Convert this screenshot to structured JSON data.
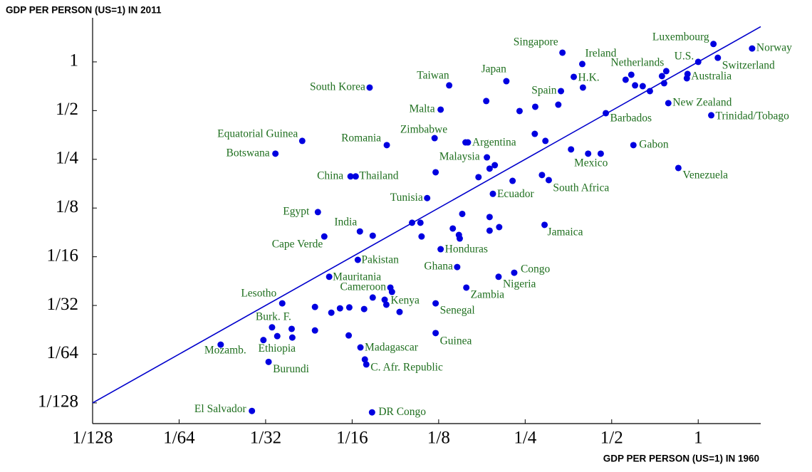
{
  "chart_data": {
    "type": "scatter",
    "ylabel": "GDP PER PERSON (US=1) IN 2011",
    "xlabel": "GDP PER PERSON (US=1) IN 1960",
    "log_x": true,
    "log_y": true,
    "identity_line": true,
    "point_color": "#0000e0",
    "label_color": "#1f6f1f",
    "line_color": "#0000cc",
    "xlim": [
      0.0078125,
      1.65
    ],
    "ylim": [
      0.00582,
      1.78
    ],
    "xticks": [
      {
        "value": 0.0078125,
        "label": "1/128"
      },
      {
        "value": 0.015625,
        "label": "1/64"
      },
      {
        "value": 0.03125,
        "label": "1/32"
      },
      {
        "value": 0.0625,
        "label": "1/16"
      },
      {
        "value": 0.125,
        "label": "1/8"
      },
      {
        "value": 0.25,
        "label": "1/4"
      },
      {
        "value": 0.5,
        "label": "1/2"
      },
      1
    ],
    "yticks": [
      {
        "value": 0.0078125,
        "label": "1/128"
      },
      {
        "value": 0.015625,
        "label": "1/64"
      },
      {
        "value": 0.03125,
        "label": "1/32"
      },
      {
        "value": 0.0625,
        "label": "1/16"
      },
      {
        "value": 0.125,
        "label": "1/8"
      },
      {
        "value": 0.25,
        "label": "1/4"
      },
      {
        "value": 0.5,
        "label": "1/2"
      },
      1
    ],
    "point_labels": [
      "Norway",
      "Luxembourg",
      "Switzerland",
      "U.S.",
      "Australia",
      "Netherlands",
      "Ireland",
      "Singapore",
      "H.K.",
      "Japan",
      "Taiwan",
      "South Korea",
      "Spain",
      "Malta",
      "New Zealand",
      "Trinidad/Tobago",
      "Barbados",
      "Equatorial Guinea",
      "Zimbabwe",
      "Romania",
      "Argentina",
      "Botswana",
      "Gabon",
      "Malaysia",
      "Mexico",
      "China",
      "Thailand",
      "Venezuela",
      "South Africa",
      "Tunisia",
      "Ecuador",
      "Egypt",
      "India",
      "Jamaica",
      "Cape Verde",
      "Honduras",
      "Pakistan",
      "Ghana",
      "Congo",
      "Mauritania",
      "Nigeria",
      "Cameroon",
      "Zambia",
      "Kenya",
      "Lesotho",
      "Senegal",
      "Burk. F.",
      "Ethiopia",
      "Guinea",
      "Mozamb.",
      "Madagascar",
      "Burundi",
      "C. Afr. Republic",
      "El Salvador",
      "DR Congo",
      null,
      null,
      null,
      null,
      null,
      null,
      null,
      null,
      null,
      null,
      null,
      null,
      null,
      null,
      null,
      null,
      null,
      null,
      null,
      null,
      null,
      null,
      null,
      null,
      null,
      null,
      null,
      null,
      null,
      null,
      null,
      null,
      null,
      null,
      null,
      null,
      null,
      null,
      null,
      null,
      null,
      null,
      null,
      null,
      null,
      null,
      null,
      null,
      null,
      null
    ],
    "x": [
      1.54,
      1.13,
      1.17,
      1.0,
      0.913,
      0.585,
      0.395,
      0.337,
      0.369,
      0.215,
      0.136,
      0.0719,
      0.333,
      0.127,
      0.787,
      1.11,
      0.477,
      0.0419,
      0.121,
      0.0825,
      0.158,
      0.0338,
      0.595,
      0.184,
      0.414,
      0.0617,
      0.0643,
      0.853,
      0.302,
      0.114,
      0.193,
      0.0475,
      0.0665,
      0.292,
      0.05,
      0.127,
      0.0654,
      0.145,
      0.229,
      0.052,
      0.202,
      0.0849,
      0.156,
      0.0822,
      0.0357,
      0.122,
      0.0329,
      0.0307,
      0.122,
      0.0218,
      0.0668,
      0.032,
      0.07,
      0.028,
      0.0733,
      0.774,
      0.748,
      0.761,
      0.641,
      0.603,
      0.679,
      0.559,
      0.918,
      0.397,
      0.271,
      0.326,
      0.239,
      0.183,
      0.27,
      0.294,
      0.155,
      0.361,
      0.458,
      0.188,
      0.196,
      0.122,
      0.172,
      0.226,
      0.286,
      0.151,
      0.188,
      0.203,
      0.188,
      0.101,
      0.108,
      0.14,
      0.147,
      0.148,
      0.109,
      0.0737,
      0.086,
      0.0811,
      0.0737,
      0.0688,
      0.0611,
      0.0567,
      0.0529,
      0.0464,
      0.0914,
      0.0385,
      0.0387,
      0.0343,
      0.0464,
      0.0608,
      0.0692
    ],
    "values": [
      1.21,
      1.29,
      1.06,
      1.0,
      0.792,
      0.833,
      0.97,
      1.14,
      0.808,
      0.76,
      0.716,
      0.694,
      0.66,
      0.507,
      0.556,
      0.468,
      0.482,
      0.325,
      0.338,
      0.306,
      0.318,
      0.271,
      0.306,
      0.257,
      0.271,
      0.196,
      0.196,
      0.221,
      0.186,
      0.144,
      0.153,
      0.118,
      0.0896,
      0.0984,
      0.0834,
      0.0696,
      0.0598,
      0.054,
      0.0498,
      0.047,
      0.047,
      0.0403,
      0.0403,
      0.0316,
      0.0322,
      0.0322,
      0.0229,
      0.0191,
      0.0211,
      0.0179,
      0.0172,
      0.014,
      0.0135,
      0.00697,
      0.00683,
      0.877,
      0.817,
      0.738,
      0.708,
      0.716,
      0.66,
      0.776,
      0.842,
      0.694,
      0.528,
      0.544,
      0.497,
      0.573,
      0.359,
      0.325,
      0.318,
      0.288,
      0.271,
      0.219,
      0.23,
      0.208,
      0.194,
      0.184,
      0.2,
      0.115,
      0.11,
      0.0953,
      0.0906,
      0.1014,
      0.1014,
      0.0934,
      0.0852,
      0.081,
      0.0834,
      0.0843,
      0.0379,
      0.0339,
      0.035,
      0.0297,
      0.0304,
      0.03,
      0.0282,
      0.0306,
      0.0285,
      0.0224,
      0.0198,
      0.0202,
      0.0219,
      0.0204,
      0.0145
    ]
  }
}
